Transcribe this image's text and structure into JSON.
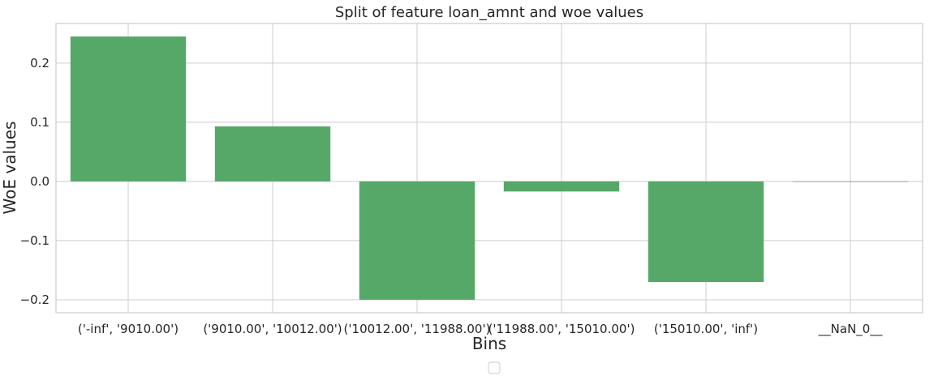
{
  "chart_data": {
    "type": "bar",
    "title": "Split of feature loan_amnt and woe values",
    "xlabel": "Bins",
    "ylabel": "WoE values",
    "categories": [
      "('-inf', '9010.00')",
      "('9010.00', '10012.00')",
      "('10012.00', '11988.00')",
      "('11988.00', '15010.00')",
      "('15010.00', 'inf')",
      "__NaN_0__"
    ],
    "values": [
      0.245,
      0.093,
      -0.2,
      -0.017,
      -0.17,
      0.0
    ],
    "ylim": [
      -0.222,
      0.267
    ],
    "yticks": [
      0.2,
      0.1,
      0.0,
      -0.1,
      -0.2
    ],
    "ytick_labels": [
      "0.2",
      "0.1",
      "0.0",
      "−0.1",
      "−0.2"
    ],
    "grid": true,
    "legend": "lower center (empty)",
    "colors": {
      "bar": "#55a868",
      "grid": "#cccccc",
      "axes": "#cccccc",
      "text": "#262626"
    }
  }
}
